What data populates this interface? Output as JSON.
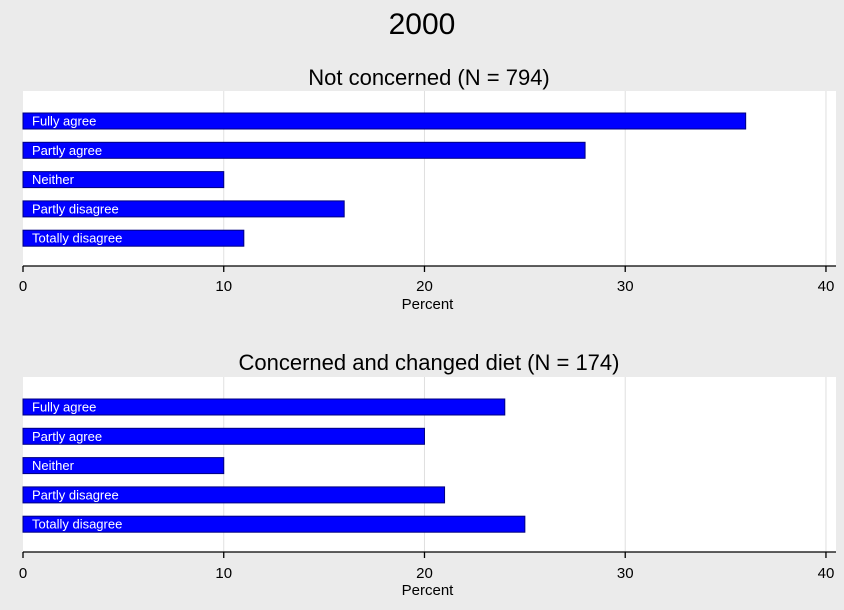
{
  "figure": {
    "title": "2000"
  },
  "chart_data": [
    {
      "type": "bar",
      "orientation": "horizontal",
      "title": "Not concerned (N = 794)",
      "categories": [
        "Fully agree",
        "Partly agree",
        "Neither",
        "Partly disagree",
        "Totally disagree"
      ],
      "values": [
        36,
        28,
        10,
        16,
        11
      ],
      "xlabel": "Percent",
      "ylabel": "",
      "xlim": [
        0,
        40.5
      ],
      "xticks": [
        0,
        10,
        20,
        30,
        40
      ],
      "grid": true,
      "colors": {
        "bar": "#0000ff",
        "bar_stroke": "#000080"
      }
    },
    {
      "type": "bar",
      "orientation": "horizontal",
      "title": "Concerned and changed diet (N = 174)",
      "categories": [
        "Fully agree",
        "Partly agree",
        "Neither",
        "Partly disagree",
        "Totally disagree"
      ],
      "values": [
        24,
        20,
        10,
        21,
        25
      ],
      "xlabel": "Percent",
      "ylabel": "",
      "xlim": [
        0,
        40.5
      ],
      "xticks": [
        0,
        10,
        20,
        30,
        40
      ],
      "grid": true,
      "colors": {
        "bar": "#0000ff",
        "bar_stroke": "#000080"
      }
    }
  ]
}
